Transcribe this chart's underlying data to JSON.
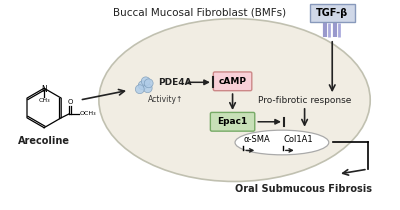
{
  "title": "Buccal Mucosal Fibroblast (BMFs)",
  "bg_color": "#ffffff",
  "cell_color": "#f0ece0",
  "cell_edge_color": "#bbbbaa",
  "tgf_label": "TGF-β",
  "tgf_box_color": "#d0d8e8",
  "pde4a_label": "PDE4A",
  "camp_label": "cAMP",
  "camp_box_color": "#f8d0d8",
  "epac1_label": "Epac1",
  "epac1_box_color": "#c8e0b8",
  "activity_label": "Activity↑",
  "profibrotic_label": "Pro-fibrotic response",
  "asma_label": "α-SMA",
  "col1a1_label": "Col1A1",
  "osf_label": "Oral Submucous Fibrosis",
  "arecoline_label": "Arecoline",
  "arrow_color": "#222222",
  "figsize": [
    4.0,
    2.1
  ],
  "dpi": 100
}
